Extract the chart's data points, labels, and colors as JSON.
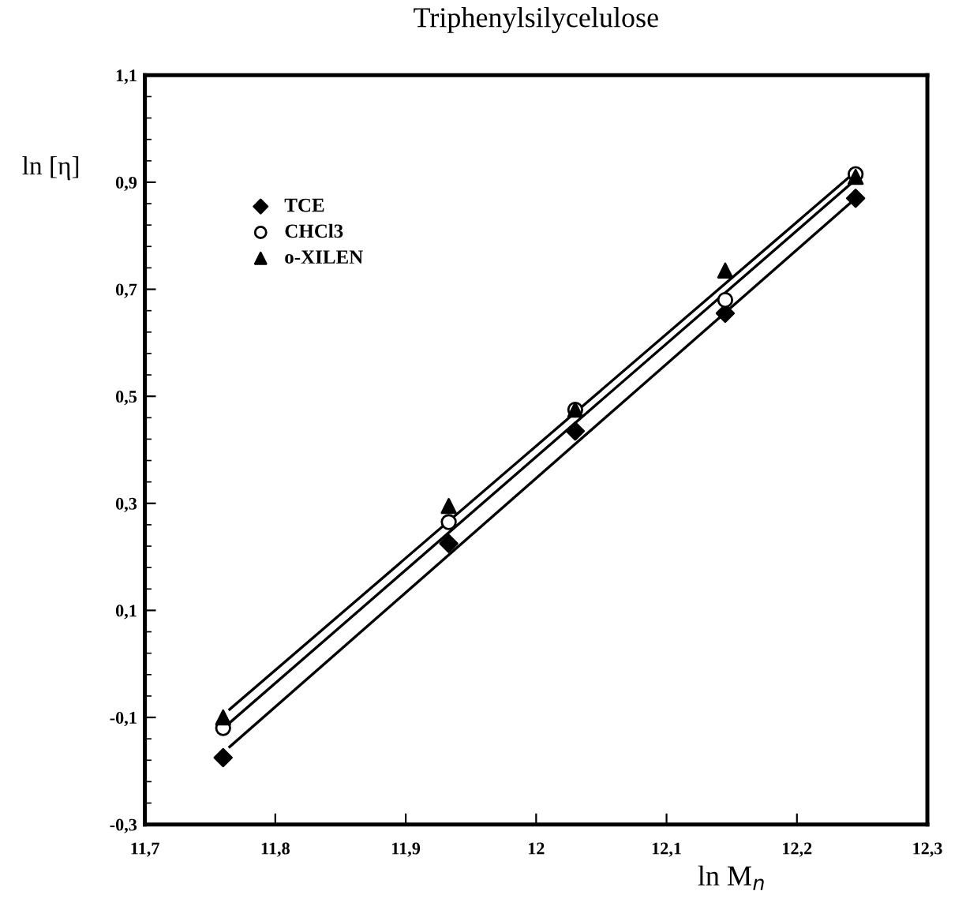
{
  "chart_data": {
    "type": "scatter",
    "title": "Triphenylsilycelulose",
    "xlabel": "ln M$_{n}$",
    "ylabel": "ln [η]",
    "xlim": [
      11.7,
      12.3
    ],
    "xticks": [
      {
        "value": 11.7,
        "label": "11,7"
      },
      {
        "value": 11.8,
        "label": "11,8"
      },
      {
        "value": 11.9,
        "label": "11,9"
      },
      {
        "value": 12,
        "label": "12"
      },
      {
        "value": 12.1,
        "label": "12,1"
      },
      {
        "value": 12.2,
        "label": "12,2"
      },
      {
        "value": 12.3,
        "label": "12,3"
      }
    ],
    "ylim": [
      -0.3,
      1.1
    ],
    "yticks": [
      {
        "value": -0.3,
        "label": "-0,3"
      },
      {
        "value": -0.1,
        "label": "-0,1"
      },
      {
        "value": 0.1,
        "label": "0,1"
      },
      {
        "value": 0.3,
        "label": "0,3"
      },
      {
        "value": 0.5,
        "label": "0,5"
      },
      {
        "value": 0.7,
        "label": "0,7"
      },
      {
        "value": 0.9,
        "label": "0,9"
      },
      {
        "value": 1.1,
        "label": "1,1"
      }
    ],
    "grid": false,
    "legend": "top left",
    "series": [
      {
        "name": "TCE",
        "marker": "diamond",
        "color": "#000000",
        "x": [
          11.76,
          11.933,
          12.03,
          12.145,
          12.245
        ],
        "values": [
          -0.175,
          0.225,
          0.435,
          0.655,
          0.87
        ]
      },
      {
        "name": "CHCl3",
        "marker": "circle",
        "color": "#000000",
        "x": [
          11.76,
          11.933,
          12.03,
          12.145,
          12.245
        ],
        "values": [
          -0.12,
          0.265,
          0.475,
          0.68,
          0.915
        ]
      },
      {
        "name": "o-XILEN",
        "marker": "triangle",
        "color": "#000000",
        "x": [
          11.76,
          11.933,
          12.03,
          12.145,
          12.245
        ],
        "values": [
          -0.1,
          0.295,
          0.475,
          0.735,
          0.91
        ]
      },
      {
        "type": "line",
        "marker": "none",
        "line_style": "solid",
        "color": "#000000",
        "x": [
          11.765,
          12.245
        ],
        "values": [
          -0.155,
          0.87
        ]
      },
      {
        "type": "line",
        "marker": "none",
        "line_style": "solid",
        "color": "#000000",
        "x": [
          11.765,
          12.245
        ],
        "values": [
          -0.11,
          0.905
        ]
      },
      {
        "type": "line",
        "marker": "none",
        "line_style": "solid",
        "color": "#000000",
        "x": [
          11.765,
          12.245
        ],
        "values": [
          -0.085,
          0.92
        ]
      }
    ]
  }
}
